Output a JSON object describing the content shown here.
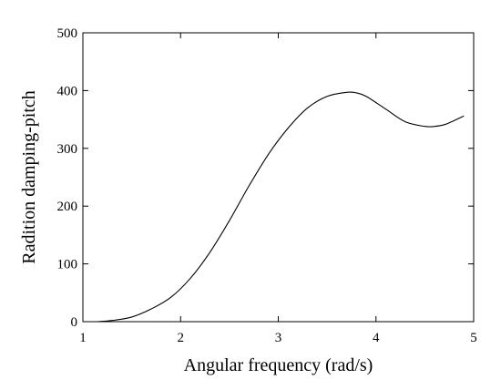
{
  "chart_data": {
    "type": "line",
    "title": "",
    "xlabel": "Angular frequency (rad/s)",
    "ylabel": "Radition damping-pitch",
    "xlim": [
      1,
      5
    ],
    "ylim": [
      0,
      500
    ],
    "xticks": [
      1,
      2,
      3,
      4,
      5
    ],
    "yticks": [
      0,
      100,
      200,
      300,
      400,
      500
    ],
    "grid": false,
    "legend": "none",
    "line_color": "#000000",
    "series": [
      {
        "x": [
          1.15,
          1.3,
          1.5,
          1.7,
          1.9,
          2.1,
          2.3,
          2.5,
          2.7,
          2.9,
          3.1,
          3.3,
          3.5,
          3.7,
          3.8,
          3.9,
          4.1,
          4.3,
          4.5,
          4.6,
          4.7,
          4.8,
          4.9
        ],
        "y": [
          0,
          2,
          8,
          22,
          42,
          75,
          120,
          175,
          235,
          290,
          335,
          370,
          390,
          397,
          396,
          390,
          368,
          346,
          338,
          338,
          341,
          348,
          356
        ]
      }
    ]
  }
}
